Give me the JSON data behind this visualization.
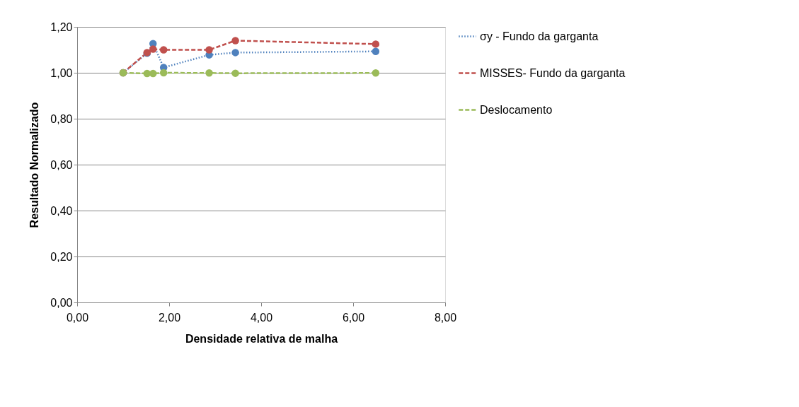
{
  "chart_data": {
    "type": "line",
    "xlabel": "Densidade relativa de malha",
    "ylabel": "Resultado Normalizado",
    "x": [
      1.0,
      1.52,
      1.65,
      1.88,
      2.87,
      3.44,
      6.49
    ],
    "series": [
      {
        "name": "σy - Fundo da garganta",
        "color": "#4f81bd",
        "line_style": "dotted",
        "values": [
          1.0,
          1.085,
          1.127,
          1.023,
          1.078,
          1.088,
          1.093
        ]
      },
      {
        "name": "MISSES- Fundo da garganta",
        "color": "#c0504d",
        "line_style": "dashed",
        "values": [
          1.0,
          1.088,
          1.103,
          1.1,
          1.1,
          1.14,
          1.125
        ]
      },
      {
        "name": "Deslocamento",
        "color": "#9bbb59",
        "line_style": "dashed",
        "values": [
          1.0,
          0.997,
          0.997,
          1.0,
          0.999,
          0.998,
          0.999
        ]
      }
    ],
    "xlim": [
      0,
      8
    ],
    "ylim": [
      0,
      1.2
    ],
    "xticks": [
      {
        "value": 0,
        "label": "0,00"
      },
      {
        "value": 2,
        "label": "2,00"
      },
      {
        "value": 4,
        "label": "4,00"
      },
      {
        "value": 6,
        "label": "6,00"
      },
      {
        "value": 8,
        "label": "8,00"
      }
    ],
    "yticks": [
      {
        "value": 0,
        "label": "0,00"
      },
      {
        "value": 0.2,
        "label": "0,20"
      },
      {
        "value": 0.4,
        "label": "0,40"
      },
      {
        "value": 0.6,
        "label": "0,60"
      },
      {
        "value": 0.8,
        "label": "0,80"
      },
      {
        "value": 1.0,
        "label": "1,00"
      },
      {
        "value": 1.2,
        "label": "1,20"
      }
    ],
    "grid": "y",
    "legend": "right",
    "marker": "circle"
  }
}
